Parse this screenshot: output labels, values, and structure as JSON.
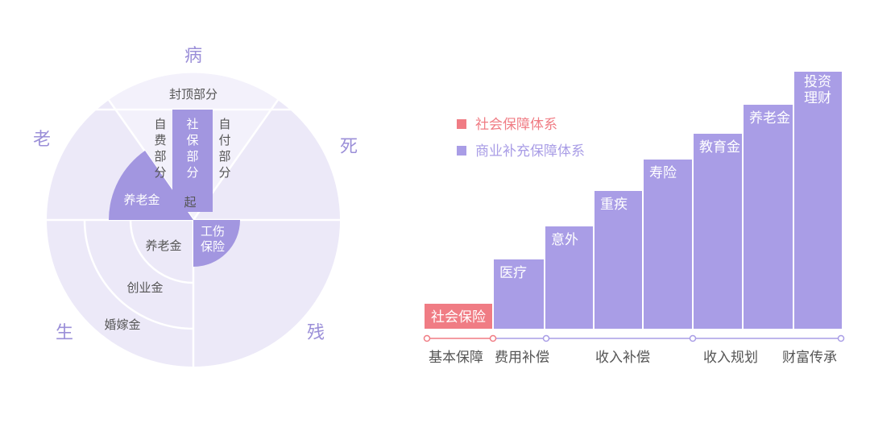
{
  "colors": {
    "social": "#f07c84",
    "commercial": "#a99de6",
    "pale": "#ece9f8",
    "mid": "#a296e0",
    "divider": "#ffffff",
    "corner_text": "#9b8fd8"
  },
  "circle": {
    "corners": {
      "top": "病",
      "left": "老",
      "right": "死",
      "bottom_left": "生",
      "bottom_right": "残"
    },
    "labels": {
      "cap": "封顶部分",
      "self_pay": "自费部分",
      "social_part": "社保部分",
      "copay": "自付部分",
      "pension_dark": "养老金",
      "deductible": "起",
      "work_injury_line1": "工伤",
      "work_injury_line2": "保险",
      "pension_light": "养老金",
      "startup_fund": "创业金",
      "marriage_fund": "婚嫁金"
    }
  },
  "legend": {
    "social": "社会保障体系",
    "commercial": "商业补充保障体系"
  },
  "chart_data": {
    "type": "bar",
    "steps": [
      {
        "label": "社会保险",
        "system": "social",
        "level": 1
      },
      {
        "label": "医疗",
        "system": "commercial",
        "level": 2
      },
      {
        "label": "意外",
        "system": "commercial",
        "level": 3
      },
      {
        "label": "重疾",
        "system": "commercial",
        "level": 4
      },
      {
        "label": "寿险",
        "system": "commercial",
        "level": 5
      },
      {
        "label": "教育金",
        "system": "commercial",
        "level": 6
      },
      {
        "label": "养老金",
        "system": "commercial",
        "level": 7
      },
      {
        "label_lines": [
          "投资",
          "理财"
        ],
        "system": "commercial",
        "level": 8
      }
    ],
    "stages": [
      "基本保障",
      "费用补偿",
      "收入补偿",
      "收入规划",
      "财富传承"
    ]
  }
}
